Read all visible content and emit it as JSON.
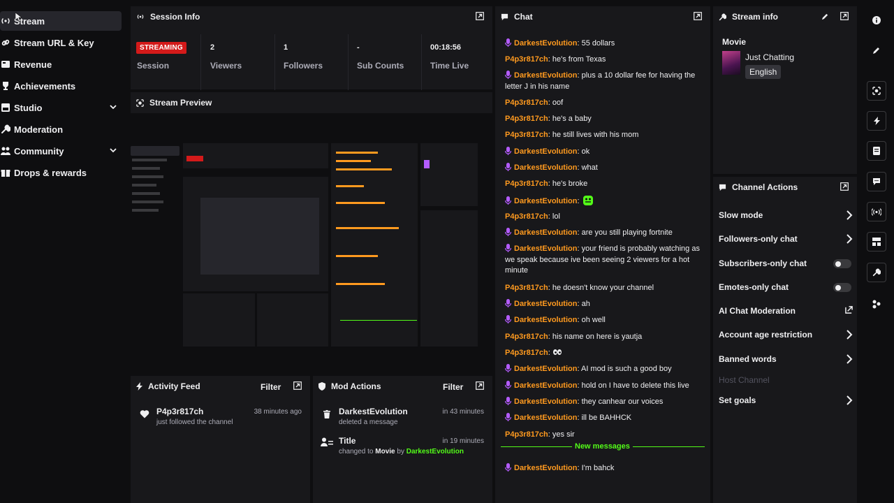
{
  "sidebar": {
    "items": [
      {
        "label": "Stream",
        "icon": "broadcast-icon"
      },
      {
        "label": "Stream URL & Key",
        "icon": "link-icon"
      },
      {
        "label": "Revenue",
        "icon": "revenue-icon"
      },
      {
        "label": "Achievements",
        "icon": "trophy-icon"
      },
      {
        "label": "Studio",
        "icon": "studio-icon"
      },
      {
        "label": "Moderation",
        "icon": "wrench-icon"
      },
      {
        "label": "Community",
        "icon": "community-icon"
      },
      {
        "label": "Drops & rewards",
        "icon": "gift-icon"
      }
    ]
  },
  "session": {
    "title": "Session Info",
    "badge": "STREAMING",
    "session_label": "Session",
    "stats": [
      {
        "value": "2",
        "label": "Viewers"
      },
      {
        "value": "1",
        "label": "Followers"
      },
      {
        "value": "-",
        "label": "Sub Counts"
      },
      {
        "value": "00:18:56",
        "label": "Time Live"
      }
    ]
  },
  "preview": {
    "title": "Stream Preview"
  },
  "activity": {
    "title": "Activity Feed",
    "filter": "Filter",
    "items": [
      {
        "user": "P4p3r817ch",
        "sub": "just followed the channel",
        "time": "38 minutes ago"
      }
    ]
  },
  "mod_actions": {
    "title": "Mod Actions",
    "filter": "Filter",
    "items": [
      {
        "title": "DarkestEvolution",
        "sub": "deleted a message",
        "time": "in 43 minutes"
      },
      {
        "title": "Title",
        "sub_prefix": "changed to ",
        "sub_bold": "Movie",
        "sub_by": " by ",
        "sub_user": "DarkestEvolution",
        "time": "in 19 minutes"
      }
    ]
  },
  "chat": {
    "title": "Chat",
    "new_messages": "New messages",
    "messages": [
      {
        "user": "DarkestEvolution",
        "mic": true,
        "text": "55 dollars"
      },
      {
        "user": "P4p3r817ch",
        "mic": false,
        "text": "he's from Texas"
      },
      {
        "user": "DarkestEvolution",
        "mic": true,
        "text": "plus a 10 dollar fee for having the letter J in his name"
      },
      {
        "user": "P4p3r817ch",
        "mic": false,
        "text": "oof"
      },
      {
        "user": "P4p3r817ch",
        "mic": false,
        "text": "he's a baby"
      },
      {
        "user": "P4p3r817ch",
        "mic": false,
        "text": "he still lives with his mom"
      },
      {
        "user": "DarkestEvolution",
        "mic": true,
        "text": "ok"
      },
      {
        "user": "DarkestEvolution",
        "mic": true,
        "text": "what"
      },
      {
        "user": "P4p3r817ch",
        "mic": false,
        "text": "he's broke"
      },
      {
        "user": "DarkestEvolution",
        "mic": true,
        "text": "",
        "emote": "green-emote-icon"
      },
      {
        "user": "P4p3r817ch",
        "mic": false,
        "text": "lol"
      },
      {
        "user": "DarkestEvolution",
        "mic": true,
        "text": "are you still playing fortnite"
      },
      {
        "user": "DarkestEvolution",
        "mic": true,
        "text": "your friend is probably watching as we speak because ive been seeing 2 viewers for a hot minute"
      },
      {
        "user": "P4p3r817ch",
        "mic": false,
        "text": "he doesn't know your channel"
      },
      {
        "user": "DarkestEvolution",
        "mic": true,
        "text": "ah"
      },
      {
        "user": "DarkestEvolution",
        "mic": true,
        "text": "oh well"
      },
      {
        "user": "P4p3r817ch",
        "mic": false,
        "text": "his name on here is yautja"
      },
      {
        "user": "P4p3r817ch",
        "mic": false,
        "text": "",
        "emote": "eyes-emote-icon"
      },
      {
        "user": "DarkestEvolution",
        "mic": true,
        "text": "AI mod is such a good boy"
      },
      {
        "user": "DarkestEvolution",
        "mic": true,
        "text": "hold on I have to delete this live"
      },
      {
        "user": "DarkestEvolution",
        "mic": true,
        "text": "they canhear our voices"
      },
      {
        "user": "DarkestEvolution",
        "mic": true,
        "text": "ill be BAHHCK"
      },
      {
        "user": "P4p3r817ch",
        "mic": false,
        "text": "yes sir"
      },
      {
        "user": "DarkestEvolution",
        "mic": true,
        "text": "I'm bahck"
      }
    ]
  },
  "stream_info": {
    "title": "Stream info",
    "stream_title": "Movie",
    "category": "Just Chatting",
    "tag": "English"
  },
  "channel_actions": {
    "title": "Channel Actions",
    "items": [
      {
        "label": "Slow mode",
        "control": "chevron"
      },
      {
        "label": "Followers-only chat",
        "control": "chevron"
      },
      {
        "label": "Subscribers-only chat",
        "control": "toggle",
        "state": "off"
      },
      {
        "label": "Emotes-only chat",
        "control": "toggle",
        "state": "off"
      },
      {
        "label": "AI Chat Moderation",
        "control": "external"
      },
      {
        "label": "Account age restriction",
        "control": "chevron"
      },
      {
        "label": "Banned words",
        "control": "chevron"
      },
      {
        "label": "Host Channel",
        "control": "none",
        "disabled": true
      },
      {
        "label": "Set goals",
        "control": "chevron"
      }
    ]
  },
  "colors": {
    "accent_green": "#53fc18",
    "live_red": "#d41a1a",
    "username_orange": "#ff9a1f",
    "mic_purple": "#b45cff"
  }
}
